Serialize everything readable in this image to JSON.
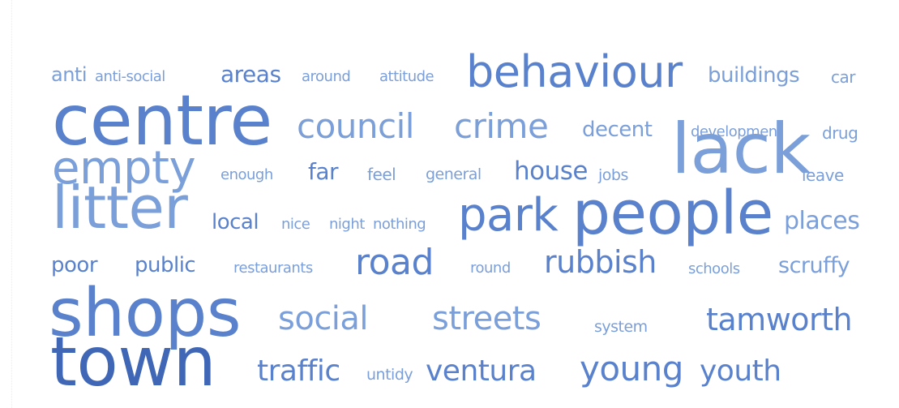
{
  "word_cloud": {
    "words": [
      {
        "text": "anti"
      },
      {
        "text": "anti-social"
      },
      {
        "text": "areas"
      },
      {
        "text": "around"
      },
      {
        "text": "attitude"
      },
      {
        "text": "behaviour"
      },
      {
        "text": "buildings"
      },
      {
        "text": "car"
      },
      {
        "text": "centre"
      },
      {
        "text": "council"
      },
      {
        "text": "crime"
      },
      {
        "text": "decent"
      },
      {
        "text": "development"
      },
      {
        "text": "drug"
      },
      {
        "text": "empty"
      },
      {
        "text": "enough"
      },
      {
        "text": "far"
      },
      {
        "text": "feel"
      },
      {
        "text": "general"
      },
      {
        "text": "house"
      },
      {
        "text": "jobs"
      },
      {
        "text": "lack"
      },
      {
        "text": "leave"
      },
      {
        "text": "litter"
      },
      {
        "text": "local"
      },
      {
        "text": "nice"
      },
      {
        "text": "night"
      },
      {
        "text": "nothing"
      },
      {
        "text": "park"
      },
      {
        "text": "people"
      },
      {
        "text": "places"
      },
      {
        "text": "poor"
      },
      {
        "text": "public"
      },
      {
        "text": "restaurants"
      },
      {
        "text": "road"
      },
      {
        "text": "round"
      },
      {
        "text": "rubbish"
      },
      {
        "text": "schools"
      },
      {
        "text": "scruffy"
      },
      {
        "text": "shops"
      },
      {
        "text": "social"
      },
      {
        "text": "streets"
      },
      {
        "text": "system"
      },
      {
        "text": "tamworth"
      },
      {
        "text": "town"
      },
      {
        "text": "traffic"
      },
      {
        "text": "untidy"
      },
      {
        "text": "ventura"
      },
      {
        "text": "young"
      },
      {
        "text": "youth"
      }
    ],
    "colors": {
      "light": "#7b9fd9",
      "mid": "#5a82cc",
      "dark": "#3f67b6"
    }
  }
}
